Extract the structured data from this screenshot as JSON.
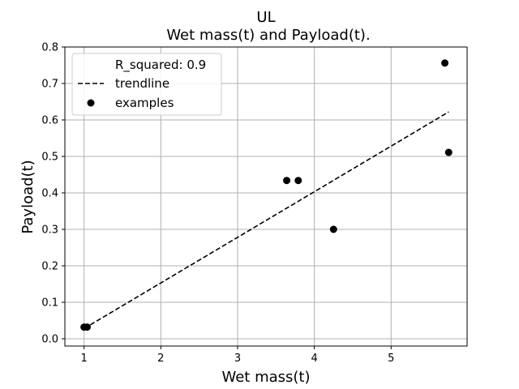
{
  "chart_data": {
    "type": "scatter",
    "title": "UL",
    "subtitle": "Wet mass(t) and Payload(t).",
    "xlabel": "Wet mass(t)",
    "ylabel": "Payload(t)",
    "xlim": [
      0.75,
      5.99
    ],
    "ylim": [
      -0.02,
      0.8
    ],
    "xticks": [
      1,
      2,
      3,
      4,
      5
    ],
    "yticks": [
      0.0,
      0.1,
      0.2,
      0.3,
      0.4,
      0.5,
      0.6,
      0.7,
      0.8
    ],
    "grid": true,
    "legend": {
      "placement": "top-left",
      "entries": [
        "R_squared: 0.9",
        "trendline",
        "examples"
      ]
    },
    "series": [
      {
        "name": "examples",
        "kind": "scatter",
        "color": "#000000",
        "x": [
          1.0,
          1.04,
          3.64,
          3.79,
          4.25,
          5.7,
          5.75
        ],
        "y": [
          0.032,
          0.032,
          0.434,
          0.434,
          0.3,
          0.756,
          0.511
        ]
      },
      {
        "name": "trendline",
        "kind": "line",
        "style": "dashed",
        "color": "#000000",
        "x": [
          1.0,
          5.75
        ],
        "y": [
          0.028,
          0.622
        ]
      }
    ]
  }
}
